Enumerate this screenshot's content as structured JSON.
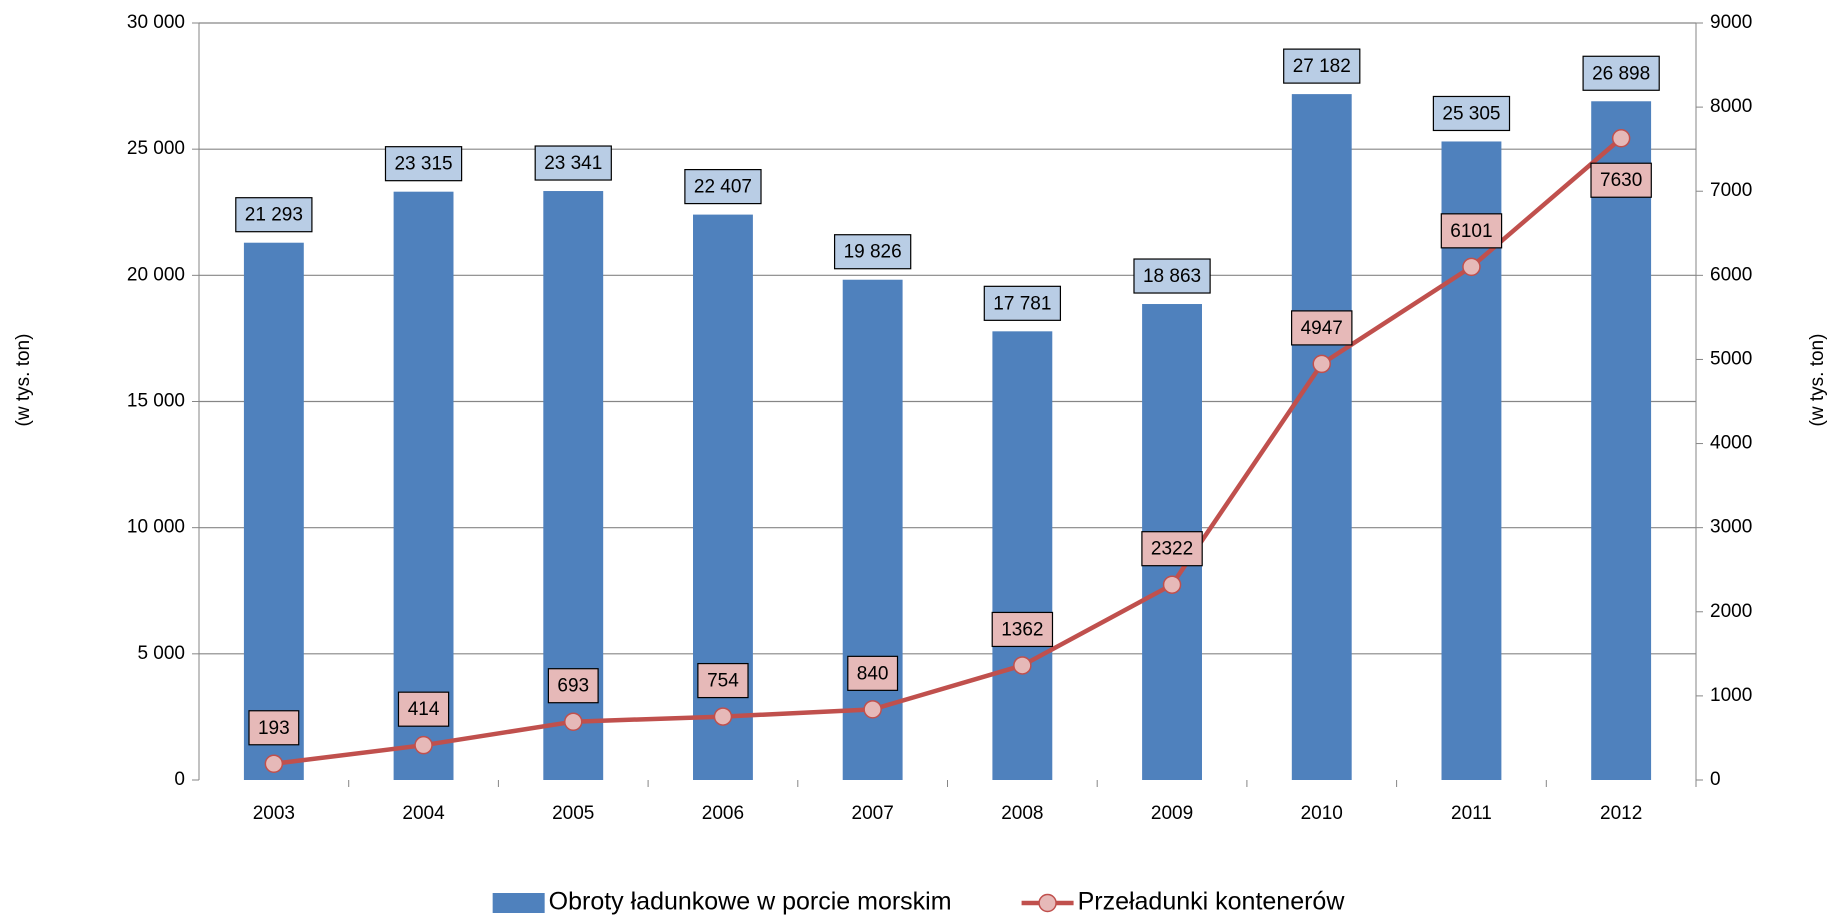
{
  "chart_data": {
    "type": "bar",
    "categories": [
      "2003",
      "2004",
      "2005",
      "2006",
      "2007",
      "2008",
      "2009",
      "2010",
      "2011",
      "2012"
    ],
    "series": [
      {
        "name": "Obroty ładunkowe w porcie morskim",
        "color": "#4f81bd",
        "label_color": "#b9cde5",
        "values": [
          21293,
          23315,
          23341,
          22407,
          19826,
          17781,
          18863,
          27182,
          25305,
          26898
        ],
        "value_labels": [
          "21 293",
          "23 315",
          "23 341",
          "22 407",
          "19 826",
          "17 781",
          "18 863",
          "27 182",
          "25 305",
          "26 898"
        ]
      },
      {
        "name": "Przeładunki kontenerów",
        "type": "line",
        "axis": "y2",
        "color": "#c0504d",
        "marker_color": "#e6b9b8",
        "label_color": "#e6b9b8",
        "values": [
          193,
          414,
          693,
          754,
          840,
          1362,
          2322,
          4947,
          6101,
          7630
        ]
      }
    ],
    "ylabel": "(w tys. ton)",
    "y2label": "(w tys. ton)",
    "ylim": [
      0,
      30000
    ],
    "yticks": [
      0,
      {
        "value": 5000,
        "label": "5 000"
      },
      {
        "value": 10000,
        "label": "10 000"
      },
      {
        "value": 15000,
        "label": "15 000"
      },
      {
        "value": 20000,
        "label": "20 000"
      },
      {
        "value": 25000,
        "label": "25 000"
      },
      {
        "value": 30000,
        "label": "30 000"
      }
    ],
    "y2lim": [
      0,
      9000
    ],
    "y2ticks": [
      0,
      1000,
      2000,
      3000,
      4000,
      5000,
      6000,
      7000,
      8000,
      9000
    ],
    "grid": true,
    "legend": "bottom"
  }
}
